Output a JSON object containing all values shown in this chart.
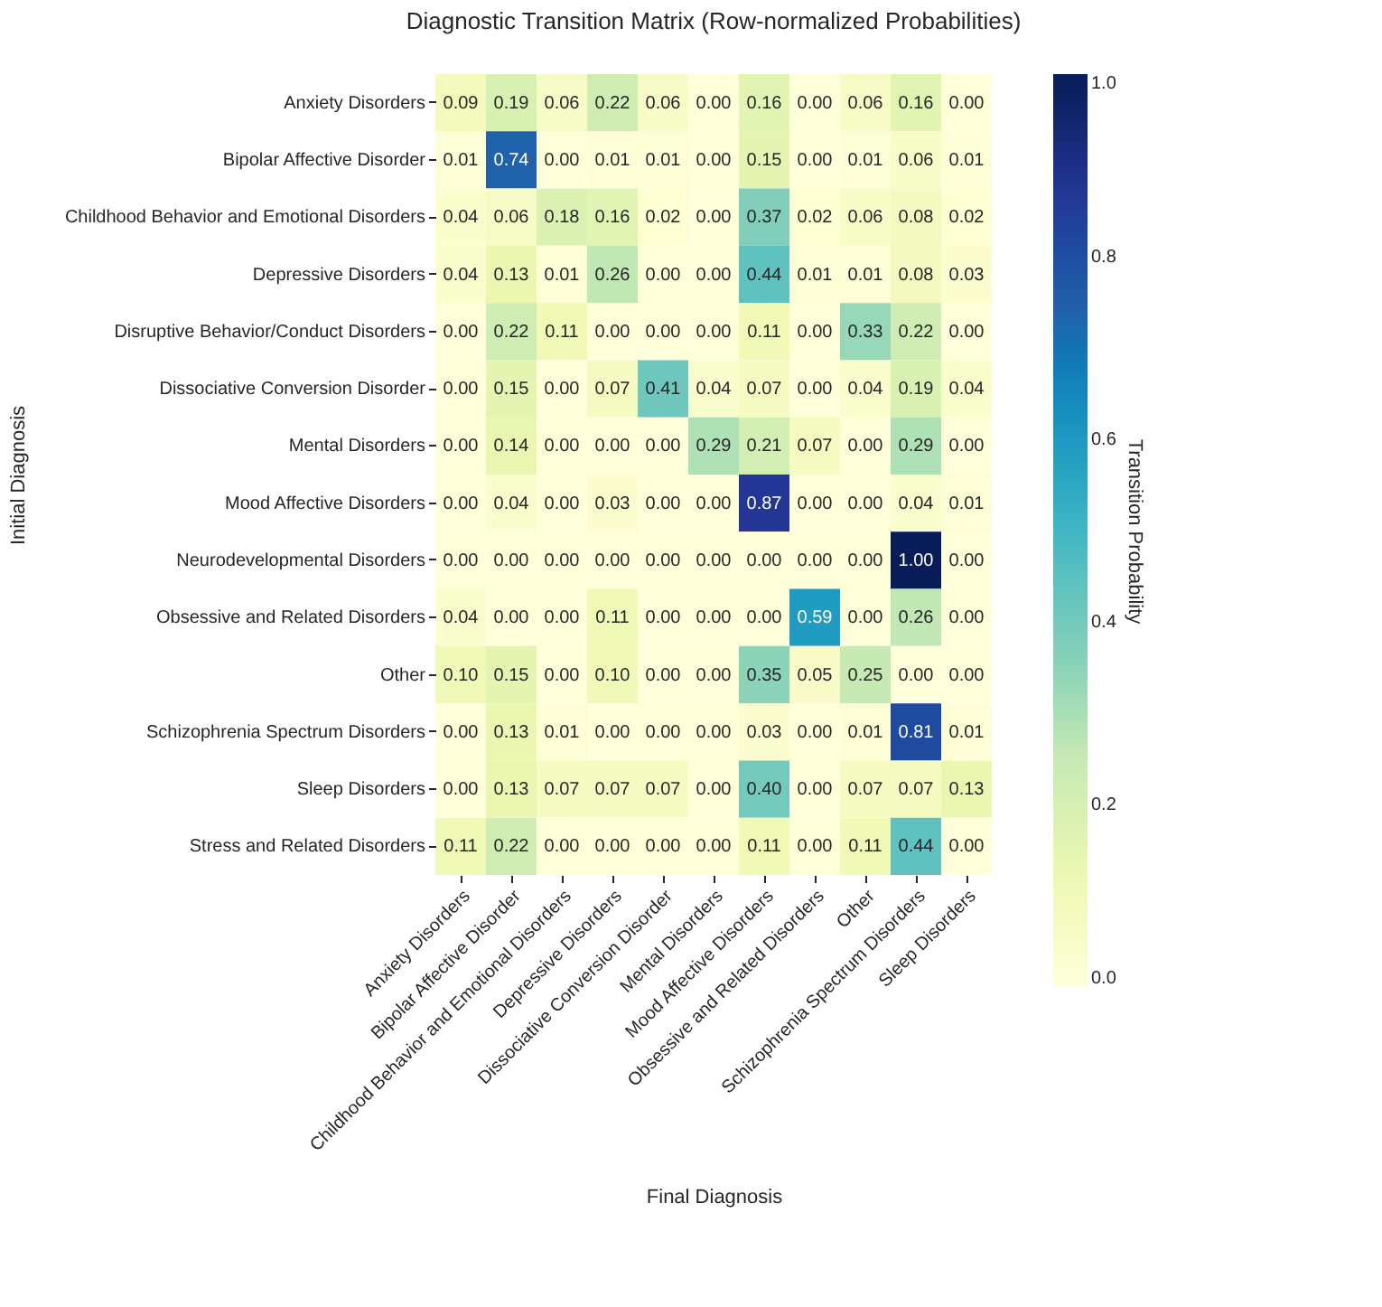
{
  "chart_data": {
    "type": "heatmap",
    "title": "Diagnostic Transition Matrix (Row-normalized Probabilities)",
    "xlabel": "Final Diagnosis",
    "ylabel": "Initial Diagnosis",
    "clabel": "Transition Probability",
    "categories": [
      "Anxiety Disorders",
      "Bipolar Affective Disorder",
      "Childhood Behavior and Emotional Disorders",
      "Depressive Disorders",
      "Dissociative Conversion Disorder",
      "Mental Disorders",
      "Mood Affective Disorders",
      "Obsessive and Related Disorders",
      "Other",
      "Schizophrenia Spectrum Disorders",
      "Sleep Disorders"
    ],
    "y_categories": [
      "Anxiety Disorders",
      "Bipolar Affective Disorder",
      "Childhood Behavior and Emotional Disorders",
      "Depressive Disorders",
      "Disruptive Behavior/Conduct Disorders",
      "Dissociative Conversion Disorder",
      "Mental Disorders",
      "Mood Affective Disorders",
      "Neurodevelopmental Disorders",
      "Obsessive and Related Disorders",
      "Other",
      "Schizophrenia Spectrum Disorders",
      "Sleep Disorders",
      "Stress and Related Disorders"
    ],
    "cells": [
      [
        0.09,
        0.19,
        0.06,
        0.22,
        0.06,
        0.0,
        0.16,
        0.0,
        0.06,
        0.16,
        0.0
      ],
      [
        0.01,
        0.74,
        0.0,
        0.01,
        0.01,
        0.0,
        0.15,
        0.0,
        0.01,
        0.06,
        0.01
      ],
      [
        0.04,
        0.06,
        0.18,
        0.16,
        0.02,
        0.0,
        0.37,
        0.02,
        0.06,
        0.08,
        0.02
      ],
      [
        0.04,
        0.13,
        0.01,
        0.26,
        0.0,
        0.0,
        0.44,
        0.01,
        0.01,
        0.08,
        0.03
      ],
      [
        0.0,
        0.22,
        0.11,
        0.0,
        0.0,
        0.0,
        0.11,
        0.0,
        0.33,
        0.22,
        0.0
      ],
      [
        0.0,
        0.15,
        0.0,
        0.07,
        0.41,
        0.04,
        0.07,
        0.0,
        0.04,
        0.19,
        0.04
      ],
      [
        0.0,
        0.14,
        0.0,
        0.0,
        0.0,
        0.29,
        0.21,
        0.07,
        0.0,
        0.29,
        0.0
      ],
      [
        0.0,
        0.04,
        0.0,
        0.03,
        0.0,
        0.0,
        0.87,
        0.0,
        0.0,
        0.04,
        0.01
      ],
      [
        0.0,
        0.0,
        0.0,
        0.0,
        0.0,
        0.0,
        0.0,
        0.0,
        0.0,
        1.0,
        0.0
      ],
      [
        0.04,
        0.0,
        0.0,
        0.11,
        0.0,
        0.0,
        0.0,
        0.59,
        0.0,
        0.26,
        0.0
      ],
      [
        0.1,
        0.15,
        0.0,
        0.1,
        0.0,
        0.0,
        0.35,
        0.05,
        0.25,
        0.0,
        0.0
      ],
      [
        0.0,
        0.13,
        0.01,
        0.0,
        0.0,
        0.0,
        0.03,
        0.0,
        0.01,
        0.81,
        0.01
      ],
      [
        0.0,
        0.13,
        0.07,
        0.07,
        0.07,
        0.0,
        0.4,
        0.0,
        0.07,
        0.07,
        0.13
      ],
      [
        0.11,
        0.22,
        0.0,
        0.0,
        0.0,
        0.0,
        0.11,
        0.0,
        0.11,
        0.44,
        0.0
      ]
    ],
    "clim": [
      0,
      1
    ],
    "cticks": [
      {
        "value": 0,
        "label": "0.0"
      },
      {
        "value": 0.2,
        "label": "0.2"
      },
      {
        "value": 0.4,
        "label": "0.4"
      },
      {
        "value": 0.6,
        "label": "0.6"
      },
      {
        "value": 0.8,
        "label": "0.8"
      },
      {
        "value": 1,
        "label": "1.0"
      }
    ],
    "cell_labels": [
      [
        "0.09",
        "0.19",
        "0.06",
        "0.22",
        "0.06",
        "0.00",
        "0.16",
        "0.00",
        "0.06",
        "0.16",
        "0.00"
      ],
      [
        "0.01",
        "0.74",
        "0.00",
        "0.01",
        "0.01",
        "0.00",
        "0.15",
        "0.00",
        "0.01",
        "0.06",
        "0.01"
      ],
      [
        "0.04",
        "0.06",
        "0.18",
        "0.16",
        "0.02",
        "0.00",
        "0.37",
        "0.02",
        "0.06",
        "0.08",
        "0.02"
      ],
      [
        "0.04",
        "0.13",
        "0.01",
        "0.26",
        "0.00",
        "0.00",
        "0.44",
        "0.01",
        "0.01",
        "0.08",
        "0.03"
      ],
      [
        "0.00",
        "0.22",
        "0.11",
        "0.00",
        "0.00",
        "0.00",
        "0.11",
        "0.00",
        "0.33",
        "0.22",
        "0.00"
      ],
      [
        "0.00",
        "0.15",
        "0.00",
        "0.07",
        "0.41",
        "0.04",
        "0.07",
        "0.00",
        "0.04",
        "0.19",
        "0.04"
      ],
      [
        "0.00",
        "0.14",
        "0.00",
        "0.00",
        "0.00",
        "0.29",
        "0.21",
        "0.07",
        "0.00",
        "0.29",
        "0.00"
      ],
      [
        "0.00",
        "0.04",
        "0.00",
        "0.03",
        "0.00",
        "0.00",
        "0.87",
        "0.00",
        "0.00",
        "0.04",
        "0.01"
      ],
      [
        "0.00",
        "0.00",
        "0.00",
        "0.00",
        "0.00",
        "0.00",
        "0.00",
        "0.00",
        "0.00",
        "1.00",
        "0.00"
      ],
      [
        "0.04",
        "0.00",
        "0.00",
        "0.11",
        "0.00",
        "0.00",
        "0.00",
        "0.59",
        "0.00",
        "0.26",
        "0.00"
      ],
      [
        "0.10",
        "0.15",
        "0.00",
        "0.10",
        "0.00",
        "0.00",
        "0.35",
        "0.05",
        "0.25",
        "0.00",
        "0.00"
      ],
      [
        "0.00",
        "0.13",
        "0.01",
        "0.00",
        "0.00",
        "0.00",
        "0.03",
        "0.00",
        "0.01",
        "0.81",
        "0.01"
      ],
      [
        "0.00",
        "0.13",
        "0.07",
        "0.07",
        "0.07",
        "0.00",
        "0.40",
        "0.00",
        "0.07",
        "0.07",
        "0.13"
      ],
      [
        "0.11",
        "0.22",
        "0.00",
        "0.00",
        "0.00",
        "0.00",
        "0.11",
        "0.00",
        "0.11",
        "0.44",
        "0.00"
      ]
    ],
    "grid": false
  }
}
